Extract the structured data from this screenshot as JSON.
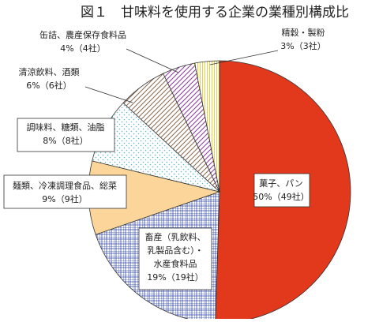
{
  "chart_data": {
    "type": "pie",
    "title": "図１　甘味料を使用する企業の業種別構成比",
    "categories": [
      [
        "菓子、パン"
      ],
      [
        "畜産（乳飲料、",
        "乳製品含む）・",
        "水産食料品"
      ],
      [
        "麺類、冷凍調理食品、総菜"
      ],
      [
        "調味料、糖類、油脂"
      ],
      [
        "清涼飲料、酒類"
      ],
      [
        "缶詰、農産保存食料品"
      ],
      [
        "精穀・製粉"
      ]
    ],
    "values": [
      50,
      19,
      9,
      8,
      6,
      4,
      3
    ],
    "value_labels": [
      "50%（49社）",
      "19%（19社）",
      "9%（9社）",
      "8%（8社）",
      "6%（6社）",
      "4%（4社）",
      "3%（3社）"
    ],
    "colors": [
      "#e2381c",
      "#3a4fa8",
      "#fcd59a",
      "#5fb8c8",
      "#8a6a50",
      "#8a3a9a",
      "#e8d040"
    ],
    "patterns": [
      "solid",
      "grid",
      "solid",
      "dots",
      "hatch",
      "hatch",
      "vstripe"
    ]
  }
}
